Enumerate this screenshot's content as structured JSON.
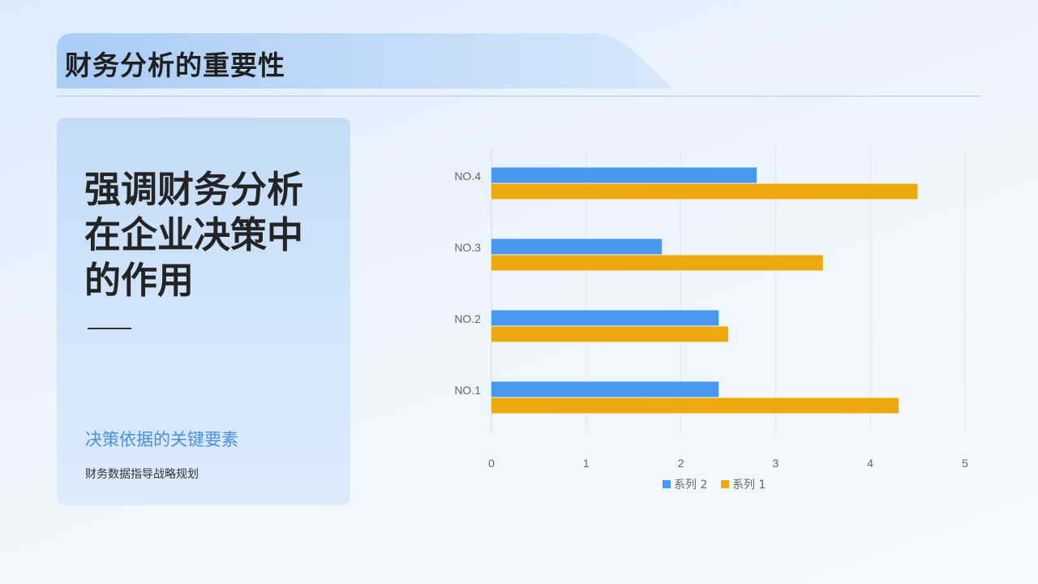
{
  "header": {
    "title": "财务分析的重要性"
  },
  "card": {
    "heading_lines": [
      "强调财务分析",
      "在企业决策中",
      "的作用"
    ],
    "subtitle": "决策依据的关键要素",
    "note": "财务数据指导战略规划"
  },
  "colors": {
    "series2": "#4a97ef",
    "series1": "#edaa0e",
    "accent": "#4a90e2"
  },
  "chart_data": {
    "type": "bar",
    "orientation": "horizontal",
    "categories": [
      "NO.1",
      "NO.2",
      "NO.3",
      "NO.4"
    ],
    "series": [
      {
        "name": "系列 1",
        "values": [
          4.3,
          2.5,
          3.5,
          4.5
        ],
        "color": "#edaa0e"
      },
      {
        "name": "系列 2",
        "values": [
          2.4,
          2.4,
          1.8,
          2.8
        ],
        "color": "#4a97ef"
      }
    ],
    "xlim": [
      0,
      5
    ],
    "xticks": [
      "0",
      "1",
      "2",
      "3",
      "4",
      "5"
    ],
    "grid": true,
    "legend_position": "bottom",
    "legend_order": [
      "系列 2",
      "系列 1"
    ]
  }
}
